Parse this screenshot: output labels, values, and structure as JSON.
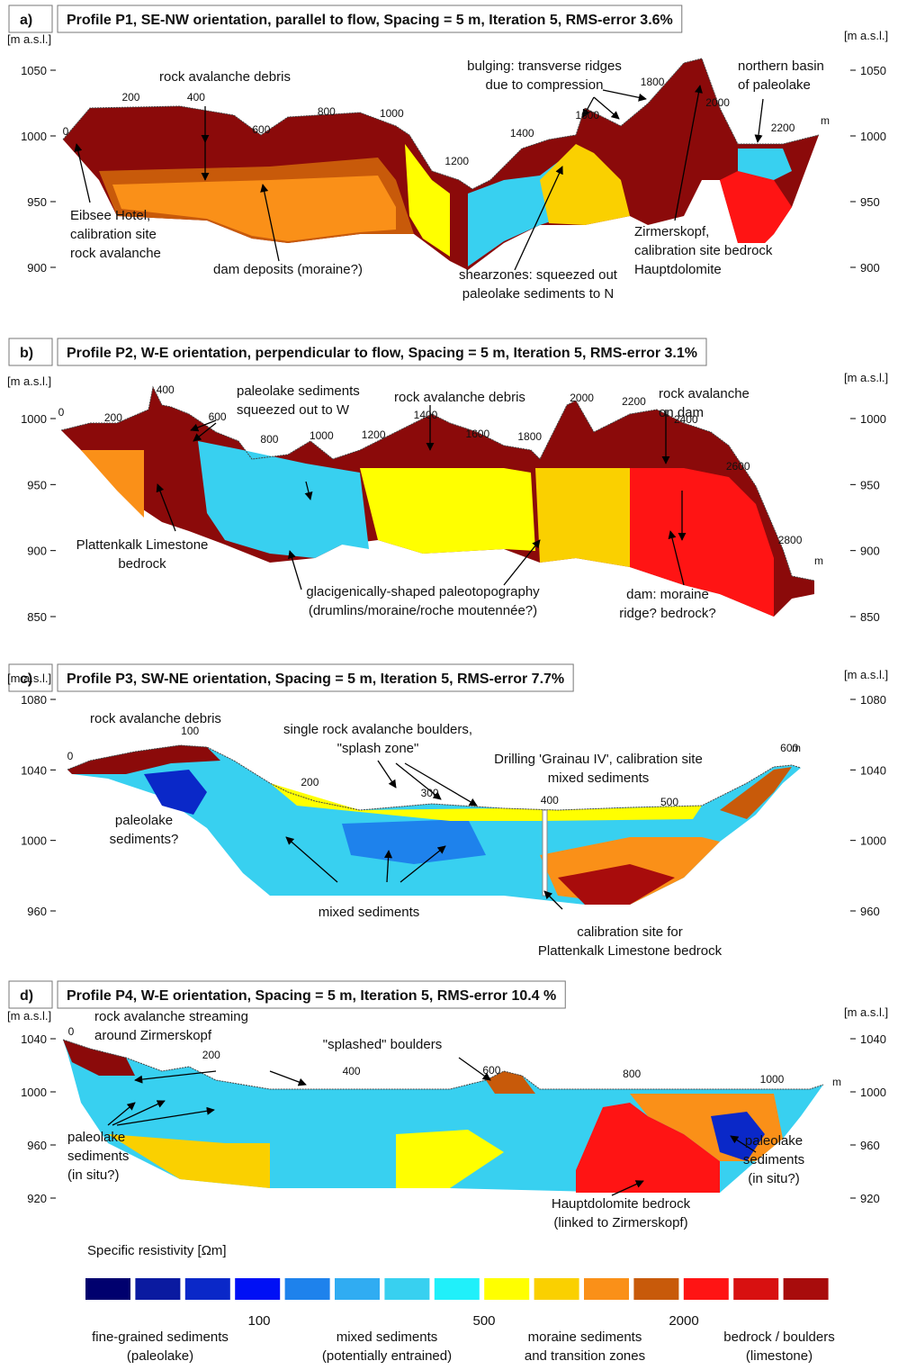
{
  "panels": [
    {
      "label": "a)",
      "title": "Profile P1, SE-NW orientation, parallel to flow, Spacing = 5 m, Iteration 5, RMS-error 3.6%",
      "unit_left": "[m a.s.l.]",
      "unit_right": "[m a.s.l.]",
      "yticks": [
        1050,
        1000,
        950,
        900
      ],
      "distances": [
        0,
        200,
        400,
        600,
        800,
        1000,
        1200,
        1400,
        1600,
        1800,
        2000,
        2200
      ],
      "distance_unit": "m",
      "annotations": [
        {
          "lines": [
            "rock avalanche debris"
          ]
        },
        {
          "lines": [
            "bulging: transverse ridges",
            "due to compression"
          ]
        },
        {
          "lines": [
            "northern basin",
            "of paleolake"
          ]
        },
        {
          "lines": [
            "Eibsee Hotel,",
            "calibration site",
            "rock avalanche"
          ]
        },
        {
          "lines": [
            "dam deposits (moraine?)"
          ]
        },
        {
          "lines": [
            "shearzones: squeezed out",
            "paleolake sediments to N"
          ]
        },
        {
          "lines": [
            "Zirmerskopf,",
            "calibration site bedrock",
            "Hauptdolomite"
          ]
        }
      ]
    },
    {
      "label": "b)",
      "title": "Profile P2, W-E orientation, perpendicular to flow, Spacing = 5 m, Iteration 5, RMS-error 3.1%",
      "unit_left": "[m a.s.l.]",
      "unit_right": "[m a.s.l.]",
      "yticks": [
        1000,
        950,
        900,
        850
      ],
      "distances": [
        0,
        200,
        400,
        600,
        800,
        1000,
        1200,
        1400,
        1600,
        1800,
        2000,
        2200,
        2400,
        2600,
        2800
      ],
      "distance_unit": "m",
      "annotations": [
        {
          "lines": [
            "paleolake sediments",
            "squeezed out to W"
          ]
        },
        {
          "lines": [
            "rock avalanche debris"
          ]
        },
        {
          "lines": [
            "rock avalanche",
            "on dam"
          ]
        },
        {
          "lines": [
            "Plattenkalk Limestone",
            "bedrock"
          ]
        },
        {
          "lines": [
            "glacigenically-shaped paleotopography",
            "(drumlins/moraine/roche moutennée?)"
          ]
        },
        {
          "lines": [
            "dam: moraine",
            "ridge? bedrock?"
          ]
        }
      ]
    },
    {
      "label": "c)",
      "title": "Profile P3, SW-NE orientation, Spacing = 5 m, Iteration 5, RMS-error 7.7%",
      "unit_left": "[m a.s.l.]",
      "unit_right": "[m a.s.l.]",
      "yticks": [
        1080,
        1040,
        1000,
        960
      ],
      "distances": [
        0,
        100,
        200,
        300,
        400,
        500,
        600
      ],
      "distance_unit": "m",
      "annotations": [
        {
          "lines": [
            "rock avalanche debris"
          ]
        },
        {
          "lines": [
            "single rock avalanche boulders,",
            "\"splash zone\""
          ]
        },
        {
          "lines": [
            "Drilling 'Grainau IV', calibration site",
            "mixed sediments"
          ]
        },
        {
          "lines": [
            "paleolake",
            "sediments?"
          ]
        },
        {
          "lines": [
            "mixed sediments"
          ]
        },
        {
          "lines": [
            "calibration site for",
            "Plattenkalk Limestone bedrock"
          ]
        }
      ]
    },
    {
      "label": "d)",
      "title": "Profile P4, W-E orientation, Spacing = 5 m, Iteration 5, RMS-error 10.4 %",
      "unit_left": "[m a.s.l.]",
      "unit_right": "[m a.s.l.]",
      "yticks": [
        1040,
        1000,
        960,
        920
      ],
      "distances": [
        0,
        200,
        400,
        600,
        800,
        1000
      ],
      "distance_unit": "m",
      "annotations": [
        {
          "lines": [
            "rock avalanche streaming",
            "around Zirmerskopf"
          ]
        },
        {
          "lines": [
            "\"splashed\" boulders"
          ]
        },
        {
          "lines": [
            "paleolake",
            "sediments",
            "(in situ?)"
          ]
        },
        {
          "lines": [
            "Hauptdolomite bedrock",
            "(linked to Zirmerskopf)"
          ]
        },
        {
          "lines": [
            "paleolake",
            "sediments",
            "(in situ?)"
          ]
        }
      ]
    }
  ],
  "legend": {
    "title": "Specific resistivity [Ωm]",
    "colors": [
      "#00006e",
      "#0a1aa0",
      "#0a28c8",
      "#0010f5",
      "#1e82ec",
      "#30acf2",
      "#38d0f0",
      "#20f0fa",
      "#ffff00",
      "#fad000",
      "#fa9018",
      "#c85a0a",
      "#ff1414",
      "#d81010",
      "#a80c0c"
    ],
    "ticks": [
      100,
      500,
      2000
    ],
    "classes": [
      [
        "fine-grained sediments",
        "(paleolake)"
      ],
      [
        "mixed sediments",
        "(potentially entrained)"
      ],
      [
        "moraine sediments",
        "and transition zones"
      ],
      [
        "bedrock / boulders",
        "(limestone)"
      ]
    ]
  }
}
